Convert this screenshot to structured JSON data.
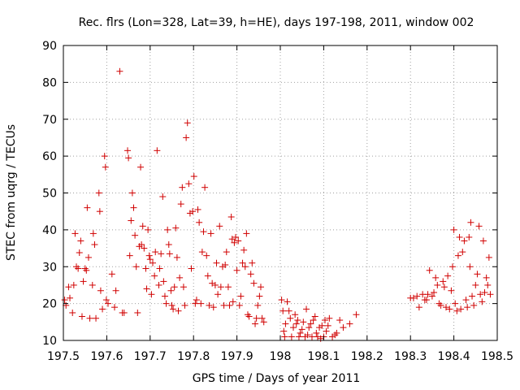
{
  "chart_data": {
    "type": "scatter",
    "title": "Rec. flrs (Lon=328, Lat=39, h=HE), days 197-198, 2011, window 002",
    "xlabel": "GPS time / Days of year 2011",
    "ylabel": "STEC from uqrg / TECUs",
    "xlim": [
      197.5,
      198.5
    ],
    "ylim": [
      10,
      90
    ],
    "xticks": [
      197.5,
      197.6,
      197.7,
      197.8,
      197.9,
      198.0,
      198.1,
      198.2,
      198.3,
      198.4,
      198.5
    ],
    "xtick_labels": [
      "197.5",
      "197.6",
      "197.7",
      "197.8",
      "197.9",
      "198",
      "198.1",
      "198.2",
      "198.3",
      "198.4",
      "198.5"
    ],
    "yticks": [
      10,
      20,
      30,
      40,
      50,
      60,
      70,
      80,
      90
    ],
    "ytick_labels": [
      "10",
      "20",
      "30",
      "40",
      "50",
      "60",
      "70",
      "80",
      "90"
    ],
    "grid": true,
    "marker": "+",
    "color": "#d00000",
    "series": [
      {
        "name": "STEC",
        "points": [
          [
            197.503,
            21.0
          ],
          [
            197.506,
            19.5
          ],
          [
            197.512,
            24.5
          ],
          [
            197.515,
            21.5
          ],
          [
            197.521,
            17.5
          ],
          [
            197.524,
            25.0
          ],
          [
            197.527,
            39.0
          ],
          [
            197.53,
            30.0
          ],
          [
            197.534,
            29.5
          ],
          [
            197.537,
            33.8
          ],
          [
            197.54,
            37.0
          ],
          [
            197.543,
            16.5
          ],
          [
            197.546,
            26.0
          ],
          [
            197.55,
            29.5
          ],
          [
            197.553,
            29.0
          ],
          [
            197.555,
            46.0
          ],
          [
            197.558,
            32.5
          ],
          [
            197.561,
            16.0
          ],
          [
            197.567,
            25.0
          ],
          [
            197.569,
            39.0
          ],
          [
            197.572,
            36.0
          ],
          [
            197.575,
            16.0
          ],
          [
            197.582,
            50.0
          ],
          [
            197.584,
            45.0
          ],
          [
            197.586,
            23.5
          ],
          [
            197.59,
            18.5
          ],
          [
            197.595,
            60.0
          ],
          [
            197.597,
            57.0
          ],
          [
            197.599,
            21.0
          ],
          [
            197.603,
            20.0
          ],
          [
            197.612,
            28.0
          ],
          [
            197.618,
            19.0
          ],
          [
            197.621,
            23.5
          ],
          [
            197.63,
            83.0
          ],
          [
            197.636,
            17.5
          ],
          [
            197.64,
            17.5
          ],
          [
            197.648,
            61.5
          ],
          [
            197.65,
            59.5
          ],
          [
            197.653,
            33.0
          ],
          [
            197.656,
            42.5
          ],
          [
            197.659,
            50.0
          ],
          [
            197.662,
            46.0
          ],
          [
            197.665,
            38.5
          ],
          [
            197.668,
            30.0
          ],
          [
            197.671,
            17.5
          ],
          [
            197.675,
            35.5
          ],
          [
            197.678,
            57.0
          ],
          [
            197.68,
            36.0
          ],
          [
            197.683,
            41.0
          ],
          [
            197.686,
            35.0
          ],
          [
            197.69,
            29.5
          ],
          [
            197.692,
            24.0
          ],
          [
            197.695,
            40.0
          ],
          [
            197.698,
            33.0
          ],
          [
            197.7,
            32.0
          ],
          [
            197.703,
            22.5
          ],
          [
            197.706,
            31.0
          ],
          [
            197.71,
            27.5
          ],
          [
            197.712,
            34.0
          ],
          [
            197.716,
            61.5
          ],
          [
            197.72,
            25.0
          ],
          [
            197.722,
            29.5
          ],
          [
            197.725,
            33.5
          ],
          [
            197.729,
            49.0
          ],
          [
            197.731,
            26.0
          ],
          [
            197.734,
            22.0
          ],
          [
            197.737,
            20.0
          ],
          [
            197.74,
            40.0
          ],
          [
            197.743,
            36.0
          ],
          [
            197.745,
            33.5
          ],
          [
            197.748,
            23.5
          ],
          [
            197.75,
            19.5
          ],
          [
            197.753,
            18.5
          ],
          [
            197.756,
            24.5
          ],
          [
            197.759,
            40.5
          ],
          [
            197.762,
            32.5
          ],
          [
            197.765,
            18.0
          ],
          [
            197.768,
            27.0
          ],
          [
            197.771,
            47.0
          ],
          [
            197.774,
            51.5
          ],
          [
            197.777,
            24.5
          ],
          [
            197.78,
            19.5
          ],
          [
            197.783,
            65.0
          ],
          [
            197.786,
            69.0
          ],
          [
            197.789,
            52.5
          ],
          [
            197.792,
            44.5
          ],
          [
            197.795,
            29.5
          ],
          [
            197.798,
            45.0
          ],
          [
            197.801,
            54.5
          ],
          [
            197.804,
            20.0
          ],
          [
            197.807,
            21.0
          ],
          [
            197.81,
            45.5
          ],
          [
            197.813,
            42.0
          ],
          [
            197.817,
            20.0
          ],
          [
            197.82,
            34.0
          ],
          [
            197.823,
            39.5
          ],
          [
            197.826,
            51.5
          ],
          [
            197.83,
            33.0
          ],
          [
            197.833,
            27.5
          ],
          [
            197.836,
            19.5
          ],
          [
            197.84,
            39.0
          ],
          [
            197.843,
            25.5
          ],
          [
            197.846,
            19.0
          ],
          [
            197.85,
            25.0
          ],
          [
            197.853,
            31.0
          ],
          [
            197.856,
            22.5
          ],
          [
            197.86,
            41.0
          ],
          [
            197.863,
            24.5
          ],
          [
            197.867,
            30.0
          ],
          [
            197.87,
            19.5
          ],
          [
            197.873,
            30.5
          ],
          [
            197.876,
            34.0
          ],
          [
            197.88,
            24.5
          ],
          [
            197.883,
            19.5
          ],
          [
            197.887,
            43.5
          ],
          [
            197.889,
            37.5
          ],
          [
            197.891,
            20.5
          ],
          [
            197.894,
            36.5
          ],
          [
            197.897,
            38.0
          ],
          [
            197.9,
            29.0
          ],
          [
            197.903,
            37.0
          ],
          [
            197.906,
            19.5
          ],
          [
            197.909,
            22.0
          ],
          [
            197.913,
            31.0
          ],
          [
            197.916,
            34.5
          ],
          [
            197.919,
            30.0
          ],
          [
            197.922,
            39.0
          ],
          [
            197.925,
            17.0
          ],
          [
            197.928,
            16.5
          ],
          [
            197.932,
            28.0
          ],
          [
            197.935,
            31.0
          ],
          [
            197.939,
            25.5
          ],
          [
            197.942,
            14.5
          ],
          [
            197.945,
            16.0
          ],
          [
            197.948,
            19.5
          ],
          [
            197.952,
            22.0
          ],
          [
            197.955,
            24.5
          ],
          [
            197.958,
            16.0
          ],
          [
            197.962,
            15.0
          ],
          [
            198.003,
            21.0
          ],
          [
            198.006,
            18.0
          ],
          [
            198.008,
            12.5
          ],
          [
            198.01,
            11.0
          ],
          [
            198.012,
            14.5
          ],
          [
            198.016,
            20.5
          ],
          [
            198.02,
            18.0
          ],
          [
            198.023,
            16.0
          ],
          [
            198.026,
            11.0
          ],
          [
            198.03,
            13.5
          ],
          [
            198.034,
            17.0
          ],
          [
            198.037,
            14.5
          ],
          [
            198.04,
            15.5
          ],
          [
            198.043,
            11.0
          ],
          [
            198.046,
            12.0
          ],
          [
            198.05,
            13.0
          ],
          [
            198.053,
            15.0
          ],
          [
            198.057,
            11.0
          ],
          [
            198.06,
            18.5
          ],
          [
            198.063,
            11.5
          ],
          [
            198.066,
            13.5
          ],
          [
            198.07,
            14.5
          ],
          [
            198.073,
            11.0
          ],
          [
            198.076,
            15.5
          ],
          [
            198.08,
            16.5
          ],
          [
            198.083,
            12.0
          ],
          [
            198.086,
            11.0
          ],
          [
            198.09,
            13.5
          ],
          [
            198.093,
            10.5
          ],
          [
            198.096,
            14.0
          ],
          [
            198.1,
            11.0
          ],
          [
            198.103,
            15.5
          ],
          [
            198.106,
            12.5
          ],
          [
            198.11,
            14.0
          ],
          [
            198.113,
            16.0
          ],
          [
            198.12,
            11.0
          ],
          [
            198.126,
            11.5
          ],
          [
            198.13,
            12.0
          ],
          [
            198.137,
            15.5
          ],
          [
            198.145,
            13.5
          ],
          [
            198.16,
            14.5
          ],
          [
            198.175,
            17.0
          ],
          [
            198.3,
            21.5
          ],
          [
            198.307,
            21.5
          ],
          [
            198.315,
            22.0
          ],
          [
            198.32,
            19.0
          ],
          [
            198.328,
            22.5
          ],
          [
            198.333,
            21.0
          ],
          [
            198.337,
            21.0
          ],
          [
            198.34,
            22.5
          ],
          [
            198.344,
            29.0
          ],
          [
            198.35,
            22.0
          ],
          [
            198.354,
            23.0
          ],
          [
            198.358,
            27.0
          ],
          [
            198.362,
            25.0
          ],
          [
            198.366,
            20.0
          ],
          [
            198.37,
            19.5
          ],
          [
            198.375,
            26.0
          ],
          [
            198.378,
            24.5
          ],
          [
            198.382,
            19.0
          ],
          [
            198.386,
            27.5
          ],
          [
            198.39,
            18.5
          ],
          [
            198.394,
            23.5
          ],
          [
            198.397,
            30.0
          ],
          [
            198.4,
            40.0
          ],
          [
            198.403,
            20.0
          ],
          [
            198.407,
            18.0
          ],
          [
            198.41,
            33.0
          ],
          [
            198.413,
            38.0
          ],
          [
            198.416,
            18.5
          ],
          [
            198.42,
            34.0
          ],
          [
            198.424,
            37.0
          ],
          [
            198.428,
            21.0
          ],
          [
            198.431,
            19.0
          ],
          [
            198.435,
            38.0
          ],
          [
            198.437,
            30.0
          ],
          [
            198.439,
            42.0
          ],
          [
            198.442,
            22.0
          ],
          [
            198.446,
            19.5
          ],
          [
            198.45,
            25.0
          ],
          [
            198.454,
            28.0
          ],
          [
            198.458,
            41.0
          ],
          [
            198.461,
            22.5
          ],
          [
            198.465,
            20.5
          ],
          [
            198.468,
            37.0
          ],
          [
            198.471,
            23.0
          ],
          [
            198.475,
            27.0
          ],
          [
            198.478,
            25.0
          ],
          [
            198.481,
            32.5
          ],
          [
            198.484,
            22.5
          ]
        ]
      }
    ]
  }
}
